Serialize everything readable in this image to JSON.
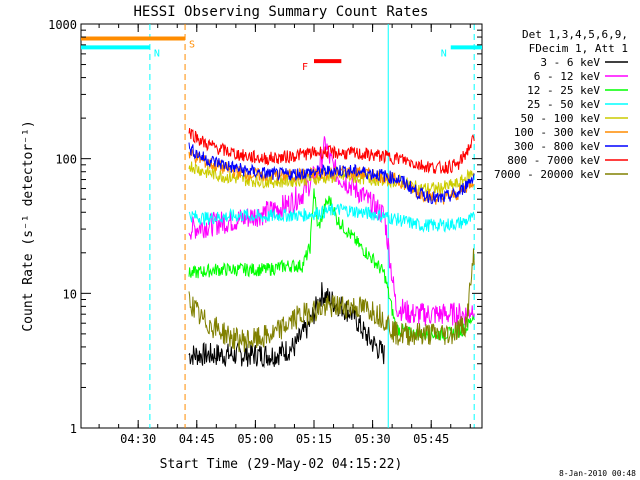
{
  "chart_data": {
    "type": "line",
    "title": "HESSI Observing Summary Count Rates",
    "xlabel": "Start Time (29-May-02 04:15:22)",
    "ylabel": "Count Rate (s⁻¹ detector⁻¹)",
    "yscale": "log",
    "ylim": [
      1,
      1000
    ],
    "xlim": [
      "04:15:22",
      "05:58"
    ],
    "x_ticks": [
      "04:30",
      "04:45",
      "05:00",
      "05:15",
      "05:30",
      "05:45"
    ],
    "y_ticks": [
      "1",
      "10",
      "100",
      "1000"
    ],
    "legend_header": [
      "Det 1,3,4,5,6,9,",
      "FDecim 1, Att 1"
    ],
    "legend_position": "right",
    "footer": "8-Jan-2010 00:48",
    "series": [
      {
        "name": "3 - 6 keV",
        "color": "#000000",
        "x": [
          "04:43",
          "04:50",
          "04:57",
          "05:05",
          "05:10",
          "05:14",
          "05:17",
          "05:19",
          "05:22",
          "05:25",
          "05:28",
          "05:31",
          "05:33"
        ],
        "values": [
          3.5,
          3.5,
          3.5,
          3.5,
          4,
          6,
          10,
          9,
          8,
          7,
          5,
          4,
          3.5
        ]
      },
      {
        "name": "6 - 12 keV",
        "color": "#ff00ff",
        "x": [
          "04:43",
          "04:50",
          "04:57",
          "05:03",
          "05:08",
          "05:12",
          "05:16",
          "05:18",
          "05:19",
          "05:21",
          "05:24",
          "05:27",
          "05:30",
          "05:33",
          "05:36",
          "05:40",
          "05:45",
          "05:50",
          "05:54",
          "05:56"
        ],
        "values": [
          30,
          33,
          36,
          40,
          45,
          55,
          80,
          130,
          100,
          75,
          65,
          55,
          45,
          38,
          8,
          7,
          7,
          7,
          7,
          8
        ]
      },
      {
        "name": "12 - 25 keV",
        "color": "#00ff00",
        "x": [
          "04:43",
          "04:50",
          "04:57",
          "05:03",
          "05:08",
          "05:12",
          "05:14",
          "05:15",
          "05:16",
          "05:18",
          "05:19",
          "05:21",
          "05:24",
          "05:27",
          "05:30",
          "05:33",
          "05:36",
          "05:40",
          "05:45",
          "05:50",
          "05:54",
          "05:56"
        ],
        "values": [
          14,
          15,
          15,
          15,
          16,
          16,
          22,
          60,
          30,
          45,
          50,
          35,
          28,
          22,
          18,
          14,
          5.5,
          5,
          5,
          5,
          5.5,
          7
        ]
      },
      {
        "name": "25 - 50 keV",
        "color": "#00ffff",
        "x": [
          "04:43",
          "04:47",
          "04:52",
          "04:57",
          "05:02",
          "05:07",
          "05:12",
          "05:17",
          "05:22",
          "05:27",
          "05:32",
          "05:37",
          "05:42",
          "05:47",
          "05:52",
          "05:56"
        ],
        "values": [
          38,
          36,
          37,
          38,
          37,
          38,
          38,
          40,
          42,
          40,
          38,
          35,
          32,
          32,
          33,
          36
        ]
      },
      {
        "name": "50 - 100 keV",
        "color": "#cccc00",
        "x": [
          "04:43",
          "04:47",
          "04:52",
          "04:57",
          "05:02",
          "05:07",
          "05:12",
          "05:17",
          "05:22",
          "05:27",
          "05:32",
          "05:37",
          "05:42",
          "05:47",
          "05:52",
          "05:56"
        ],
        "values": [
          90,
          80,
          74,
          70,
          68,
          68,
          70,
          72,
          74,
          72,
          70,
          68,
          60,
          60,
          65,
          80
        ]
      },
      {
        "name": "100 - 300 keV",
        "color": "#ff8c00",
        "x": [
          "04:43",
          "04:47",
          "04:52",
          "04:57",
          "05:02",
          "05:07",
          "05:12",
          "05:17",
          "05:22",
          "05:27",
          "05:32",
          "05:37",
          "05:42",
          "05:47",
          "05:52",
          "05:56"
        ],
        "values": [
          110,
          95,
          85,
          78,
          75,
          75,
          76,
          78,
          80,
          78,
          75,
          68,
          55,
          50,
          55,
          70
        ]
      },
      {
        "name": "300 - 800 keV",
        "color": "#0000ff",
        "x": [
          "04:43",
          "04:47",
          "04:52",
          "04:57",
          "05:02",
          "05:07",
          "05:12",
          "05:17",
          "05:22",
          "05:27",
          "05:32",
          "05:37",
          "05:42",
          "05:47",
          "05:52",
          "05:56"
        ],
        "values": [
          120,
          100,
          90,
          82,
          78,
          76,
          78,
          80,
          82,
          80,
          76,
          70,
          55,
          50,
          55,
          75
        ]
      },
      {
        "name": "800 - 7000 keV",
        "color": "#ff0000",
        "x": [
          "04:43",
          "04:47",
          "04:52",
          "04:57",
          "05:02",
          "05:07",
          "05:12",
          "05:17",
          "05:22",
          "05:27",
          "05:32",
          "05:37",
          "05:42",
          "05:47",
          "05:52",
          "05:56"
        ],
        "values": [
          160,
          130,
          115,
          105,
          100,
          102,
          108,
          112,
          110,
          108,
          105,
          100,
          90,
          85,
          90,
          140
        ]
      },
      {
        "name": "7000 - 20000 keV",
        "color": "#808000",
        "x": [
          "04:43",
          "04:46",
          "04:50",
          "04:55",
          "05:00",
          "05:05",
          "05:10",
          "05:15",
          "05:20",
          "05:25",
          "05:30",
          "05:33",
          "05:36",
          "05:40",
          "05:45",
          "05:50",
          "05:54",
          "05:56"
        ],
        "values": [
          9,
          6.5,
          5.5,
          4.5,
          4.5,
          5,
          6.5,
          7.5,
          8,
          8,
          7.5,
          6.5,
          5,
          5,
          5,
          5,
          6,
          20
        ]
      }
    ],
    "markers": [
      {
        "label": "N",
        "color": "#00ffff",
        "type": "night",
        "from": "04:15:22",
        "to": "04:33",
        "level": 670
      },
      {
        "label": "N",
        "color": "#00ffff",
        "type": "night",
        "from": "05:50",
        "to": "05:58",
        "level": 670
      },
      {
        "label": "S",
        "color": "#ff8c00",
        "type": "saa",
        "from": "04:15:22",
        "to": "04:42",
        "level": 780
      },
      {
        "label": "F",
        "color": "#ff0000",
        "type": "flare",
        "from": "05:15",
        "to": "05:22",
        "level": 530
      }
    ],
    "vlines": [
      {
        "at": "04:33",
        "color": "#00ffff",
        "style": "dashed"
      },
      {
        "at": "04:42",
        "color": "#ff8c00",
        "style": "dashed"
      },
      {
        "at": "05:34",
        "color": "#00ffff",
        "style": "solid"
      },
      {
        "at": "05:56",
        "color": "#00ffff",
        "style": "dashed"
      }
    ]
  }
}
